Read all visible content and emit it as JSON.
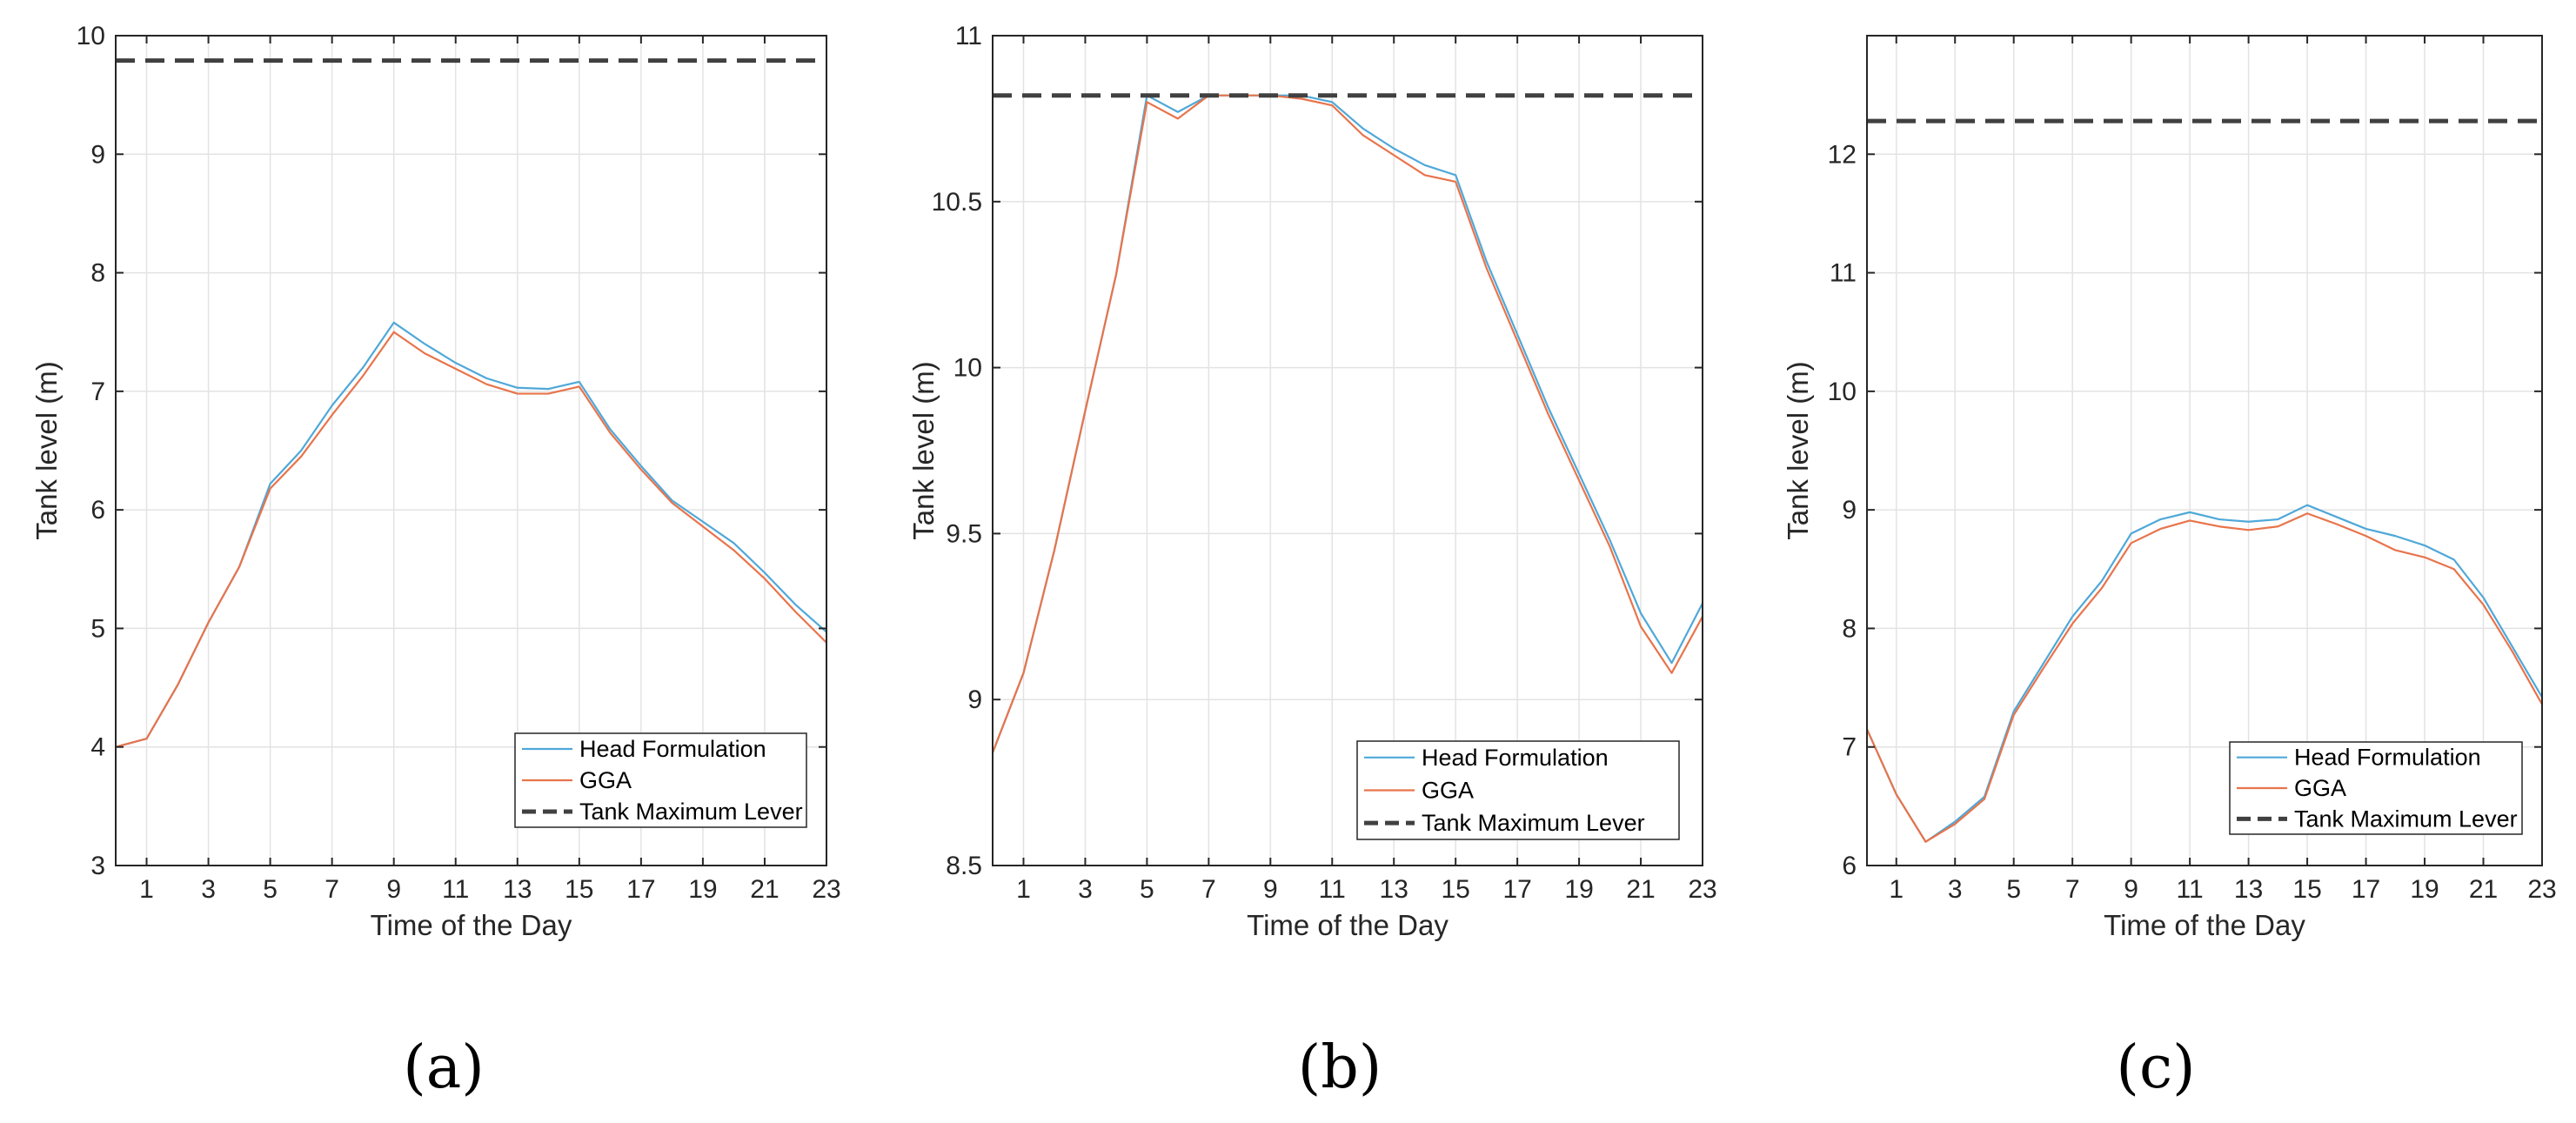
{
  "colors": {
    "head_formulation": "#4fa8d8",
    "gga": "#e8744c",
    "tank_max": "#404040",
    "grid": "#e3e3e3",
    "axis": "#262626"
  },
  "chart_data": [
    {
      "type": "line",
      "panel": "(a)",
      "xlabel": "Time of the Day",
      "ylabel": "Tank level (m)",
      "xlim": [
        0,
        23
      ],
      "ylim": [
        3,
        10
      ],
      "xticks": [
        1,
        3,
        5,
        7,
        9,
        11,
        13,
        15,
        17,
        19,
        21,
        23
      ],
      "yticks": [
        3,
        4,
        5,
        6,
        7,
        8,
        9,
        10
      ],
      "grid": true,
      "legend_position": "bottom-right",
      "series": [
        {
          "name": "Head Formulation",
          "style": "solid",
          "x": [
            0,
            1,
            2,
            3,
            4,
            5,
            6,
            7,
            8,
            9,
            10,
            11,
            12,
            13,
            14,
            15,
            16,
            17,
            18,
            19,
            20,
            21,
            22,
            23
          ],
          "y": [
            4.0,
            4.07,
            4.52,
            5.05,
            5.52,
            6.22,
            6.5,
            6.88,
            7.2,
            7.58,
            7.4,
            7.24,
            7.11,
            7.03,
            7.02,
            7.08,
            6.68,
            6.37,
            6.08,
            5.9,
            5.72,
            5.47,
            5.2,
            4.97
          ]
        },
        {
          "name": "GGA",
          "style": "solid",
          "x": [
            0,
            1,
            2,
            3,
            4,
            5,
            6,
            7,
            8,
            9,
            10,
            11,
            12,
            13,
            14,
            15,
            16,
            17,
            18,
            19,
            20,
            21,
            22,
            23
          ],
          "y": [
            4.0,
            4.07,
            4.52,
            5.05,
            5.52,
            6.18,
            6.45,
            6.8,
            7.13,
            7.5,
            7.32,
            7.19,
            7.06,
            6.98,
            6.98,
            7.04,
            6.65,
            6.34,
            6.06,
            5.86,
            5.66,
            5.42,
            5.14,
            4.88
          ]
        },
        {
          "name": "Tank Maximum Lever",
          "style": "dashed",
          "x": [
            0,
            23
          ],
          "y": [
            9.79,
            9.79
          ]
        }
      ]
    },
    {
      "type": "line",
      "panel": "(b)",
      "xlabel": "Time of the Day",
      "ylabel": "Tank level (m)",
      "xlim": [
        0,
        23
      ],
      "ylim": [
        8.5,
        11
      ],
      "xticks": [
        1,
        3,
        5,
        7,
        9,
        11,
        13,
        15,
        17,
        19,
        21,
        23
      ],
      "yticks": [
        8.5,
        9,
        9.5,
        10,
        10.5,
        11
      ],
      "grid": true,
      "legend_position": "bottom-right",
      "series": [
        {
          "name": "Head Formulation",
          "style": "solid",
          "x": [
            0,
            1,
            2,
            3,
            4,
            5,
            6,
            7,
            8,
            9,
            10,
            11,
            12,
            13,
            14,
            15,
            16,
            17,
            18,
            19,
            20,
            21,
            22,
            23
          ],
          "y": [
            8.84,
            9.08,
            9.45,
            9.87,
            10.28,
            10.82,
            10.77,
            10.82,
            10.82,
            10.82,
            10.82,
            10.8,
            10.72,
            10.66,
            10.61,
            10.58,
            10.32,
            10.1,
            9.88,
            9.68,
            9.48,
            9.26,
            9.11,
            9.29
          ]
        },
        {
          "name": "GGA",
          "style": "solid",
          "x": [
            0,
            1,
            2,
            3,
            4,
            5,
            6,
            7,
            8,
            9,
            10,
            11,
            12,
            13,
            14,
            15,
            16,
            17,
            18,
            19,
            20,
            21,
            22,
            23
          ],
          "y": [
            8.84,
            9.08,
            9.45,
            9.87,
            10.28,
            10.8,
            10.75,
            10.82,
            10.82,
            10.82,
            10.81,
            10.79,
            10.7,
            10.64,
            10.58,
            10.56,
            10.3,
            10.08,
            9.86,
            9.66,
            9.46,
            9.22,
            9.08,
            9.25
          ]
        },
        {
          "name": "Tank Maximum Lever",
          "style": "dashed",
          "x": [
            0,
            23
          ],
          "y": [
            10.82,
            10.82
          ]
        }
      ]
    },
    {
      "type": "line",
      "panel": "(c)",
      "xlabel": "Time of the Day",
      "ylabel": "Tank level (m)",
      "xlim": [
        0,
        23
      ],
      "ylim": [
        6,
        13
      ],
      "xticks": [
        1,
        3,
        5,
        7,
        9,
        11,
        13,
        15,
        17,
        19,
        21,
        23
      ],
      "yticks": [
        6,
        7,
        8,
        9,
        10,
        11,
        12
      ],
      "grid": true,
      "legend_position": "bottom-right",
      "series": [
        {
          "name": "Head Formulation",
          "style": "solid",
          "x": [
            0,
            1,
            2,
            3,
            4,
            5,
            6,
            7,
            8,
            9,
            10,
            11,
            12,
            13,
            14,
            15,
            16,
            17,
            18,
            19,
            20,
            21,
            22,
            23
          ],
          "y": [
            7.15,
            6.6,
            6.2,
            6.37,
            6.58,
            7.3,
            7.7,
            8.1,
            8.4,
            8.8,
            8.92,
            8.98,
            8.92,
            8.9,
            8.92,
            9.04,
            8.94,
            8.84,
            8.78,
            8.7,
            8.58,
            8.26,
            7.84,
            7.42
          ]
        },
        {
          "name": "GGA",
          "style": "solid",
          "x": [
            0,
            1,
            2,
            3,
            4,
            5,
            6,
            7,
            8,
            9,
            10,
            11,
            12,
            13,
            14,
            15,
            16,
            17,
            18,
            19,
            20,
            21,
            22,
            23
          ],
          "y": [
            7.15,
            6.6,
            6.2,
            6.35,
            6.56,
            7.27,
            7.66,
            8.04,
            8.34,
            8.72,
            8.84,
            8.91,
            8.86,
            8.83,
            8.86,
            8.97,
            8.88,
            8.78,
            8.66,
            8.6,
            8.5,
            8.2,
            7.8,
            7.36
          ]
        },
        {
          "name": "Tank Maximum Lever",
          "style": "dashed",
          "x": [
            0,
            23
          ],
          "y": [
            12.28,
            12.28
          ]
        }
      ]
    }
  ]
}
